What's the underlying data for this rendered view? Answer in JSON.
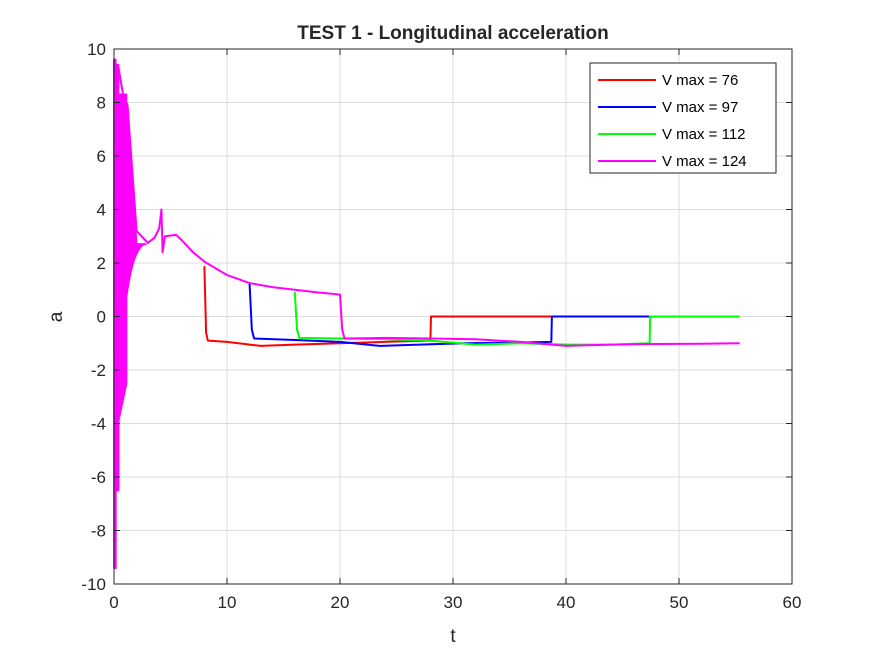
{
  "chart_data": {
    "type": "line",
    "title": "TEST 1 - Longitudinal acceleration",
    "xlabel": "t",
    "ylabel": "a",
    "xlim": [
      0,
      60
    ],
    "ylim": [
      -10,
      10
    ],
    "xticks": [
      0,
      10,
      20,
      30,
      40,
      50,
      60
    ],
    "yticks": [
      -10,
      -8,
      -6,
      -4,
      -2,
      0,
      2,
      4,
      6,
      8,
      10
    ],
    "grid": true,
    "legend_position": "top-right",
    "series": [
      {
        "name": "V max = 76",
        "color": "#ff0000",
        "points": [
          [
            8.0,
            1.85
          ],
          [
            8.15,
            -0.6
          ],
          [
            8.3,
            -0.9
          ],
          [
            10,
            -0.95
          ],
          [
            13,
            -1.1
          ],
          [
            16,
            -1.05
          ],
          [
            20,
            -1.0
          ],
          [
            24,
            -0.95
          ],
          [
            28,
            -0.9
          ],
          [
            28.05,
            0.0
          ],
          [
            30,
            0.0
          ],
          [
            35,
            0.0
          ],
          [
            38.7,
            0.0
          ]
        ]
      },
      {
        "name": "V max = 97",
        "color": "#0000ff",
        "points": [
          [
            12.0,
            1.2
          ],
          [
            12.2,
            -0.5
          ],
          [
            12.4,
            -0.82
          ],
          [
            16,
            -0.88
          ],
          [
            20,
            -0.95
          ],
          [
            23.5,
            -1.1
          ],
          [
            27,
            -1.05
          ],
          [
            31,
            -1.0
          ],
          [
            35,
            -0.98
          ],
          [
            38.7,
            -0.95
          ],
          [
            38.75,
            0.0
          ],
          [
            42,
            0.0
          ],
          [
            47.3,
            0.0
          ]
        ]
      },
      {
        "name": "V max = 112",
        "color": "#00ff00",
        "points": [
          [
            16.0,
            0.9
          ],
          [
            16.2,
            -0.5
          ],
          [
            16.4,
            -0.8
          ],
          [
            20,
            -0.82
          ],
          [
            24,
            -0.85
          ],
          [
            28,
            -0.9
          ],
          [
            32,
            -1.05
          ],
          [
            36,
            -1.0
          ],
          [
            40,
            -1.05
          ],
          [
            44,
            -1.05
          ],
          [
            47.4,
            -1.0
          ],
          [
            47.45,
            0.0
          ],
          [
            50,
            0.0
          ],
          [
            55.3,
            0.0
          ]
        ]
      },
      {
        "name": "V max = 124",
        "color": "#ff00ff",
        "points": [
          [
            0,
            9.5
          ],
          [
            0.4,
            9.3
          ],
          [
            0.8,
            8.3
          ],
          [
            1.2,
            7.9
          ],
          [
            2.0,
            3.2
          ],
          [
            3.0,
            2.75
          ],
          [
            3.6,
            2.95
          ],
          [
            4.0,
            3.3
          ],
          [
            4.2,
            4.0
          ],
          [
            4.3,
            2.4
          ],
          [
            4.5,
            3.0
          ],
          [
            5.5,
            3.05
          ],
          [
            6.0,
            2.85
          ],
          [
            7.0,
            2.4
          ],
          [
            8.0,
            2.05
          ],
          [
            9.0,
            1.8
          ],
          [
            10,
            1.55
          ],
          [
            12,
            1.25
          ],
          [
            14,
            1.1
          ],
          [
            16,
            1.0
          ],
          [
            18,
            0.9
          ],
          [
            20,
            0.82
          ],
          [
            20.2,
            -0.5
          ],
          [
            20.4,
            -0.82
          ],
          [
            24,
            -0.8
          ],
          [
            28,
            -0.82
          ],
          [
            32,
            -0.85
          ],
          [
            36,
            -0.95
          ],
          [
            40,
            -1.1
          ],
          [
            44,
            -1.05
          ],
          [
            48,
            -1.03
          ],
          [
            52,
            -1.02
          ],
          [
            55.3,
            -1.0
          ]
        ]
      }
    ]
  }
}
